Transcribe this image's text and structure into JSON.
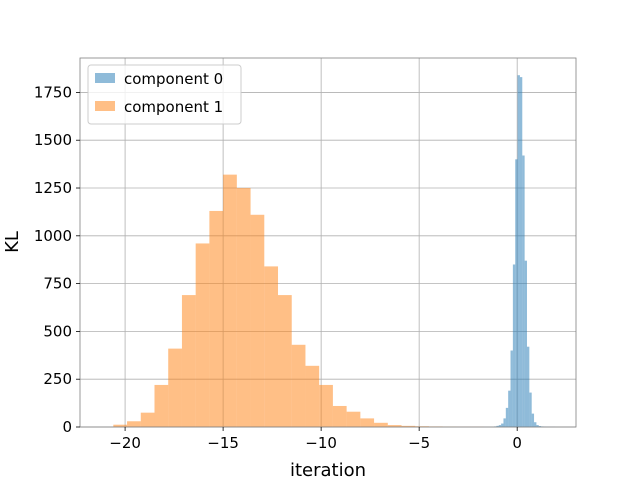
{
  "chart_data": {
    "type": "histogram",
    "title": "",
    "xlabel": "iteration",
    "ylabel": "KL",
    "xlim": [
      -22.3,
      3.0
    ],
    "ylim": [
      0,
      1930
    ],
    "xticks": [
      -20,
      -15,
      -10,
      -5,
      0
    ],
    "xtick_labels": [
      "−20",
      "−15",
      "−10",
      "−5",
      "0"
    ],
    "yticks": [
      0,
      250,
      500,
      750,
      1000,
      1250,
      1500,
      1750
    ],
    "ytick_labels": [
      "0",
      "250",
      "500",
      "750",
      "1000",
      "1250",
      "1500",
      "1750"
    ],
    "grid": true,
    "legend_position": "top-left",
    "series": [
      {
        "name": "component 0",
        "color": "#1f77b4",
        "opacity": 0.5,
        "bin_edges": [
          -1.18,
          -1.06,
          -0.94,
          -0.82,
          -0.7,
          -0.58,
          -0.46,
          -0.34,
          -0.22,
          -0.1,
          0.02,
          0.14,
          0.26,
          0.38,
          0.5,
          0.62,
          0.74,
          0.86,
          0.98,
          1.1,
          1.22,
          1.34,
          1.46,
          1.58,
          1.7,
          1.82,
          1.94
        ],
        "counts": [
          3,
          6,
          10,
          18,
          45,
          100,
          190,
          400,
          850,
          1400,
          1840,
          1830,
          1420,
          870,
          420,
          180,
          70,
          25,
          10,
          5,
          3,
          2,
          1,
          1,
          1,
          1
        ]
      },
      {
        "name": "component 1",
        "color": "#ff7f0e",
        "opacity": 0.5,
        "bin_edges": [
          -20.6,
          -19.9,
          -19.2,
          -18.5,
          -17.8,
          -17.1,
          -16.4,
          -15.7,
          -15.0,
          -14.3,
          -13.6,
          -12.9,
          -12.2,
          -11.5,
          -10.8,
          -10.1,
          -9.4,
          -8.7,
          -8.0,
          -7.3,
          -6.6,
          -5.9,
          -5.2,
          -4.5,
          -3.8,
          -3.1,
          -2.4,
          -1.7
        ],
        "counts": [
          12,
          30,
          75,
          220,
          410,
          690,
          960,
          1130,
          1320,
          1250,
          1110,
          840,
          690,
          430,
          320,
          220,
          110,
          80,
          45,
          22,
          10,
          6,
          4,
          3,
          2,
          1,
          1
        ]
      }
    ]
  }
}
